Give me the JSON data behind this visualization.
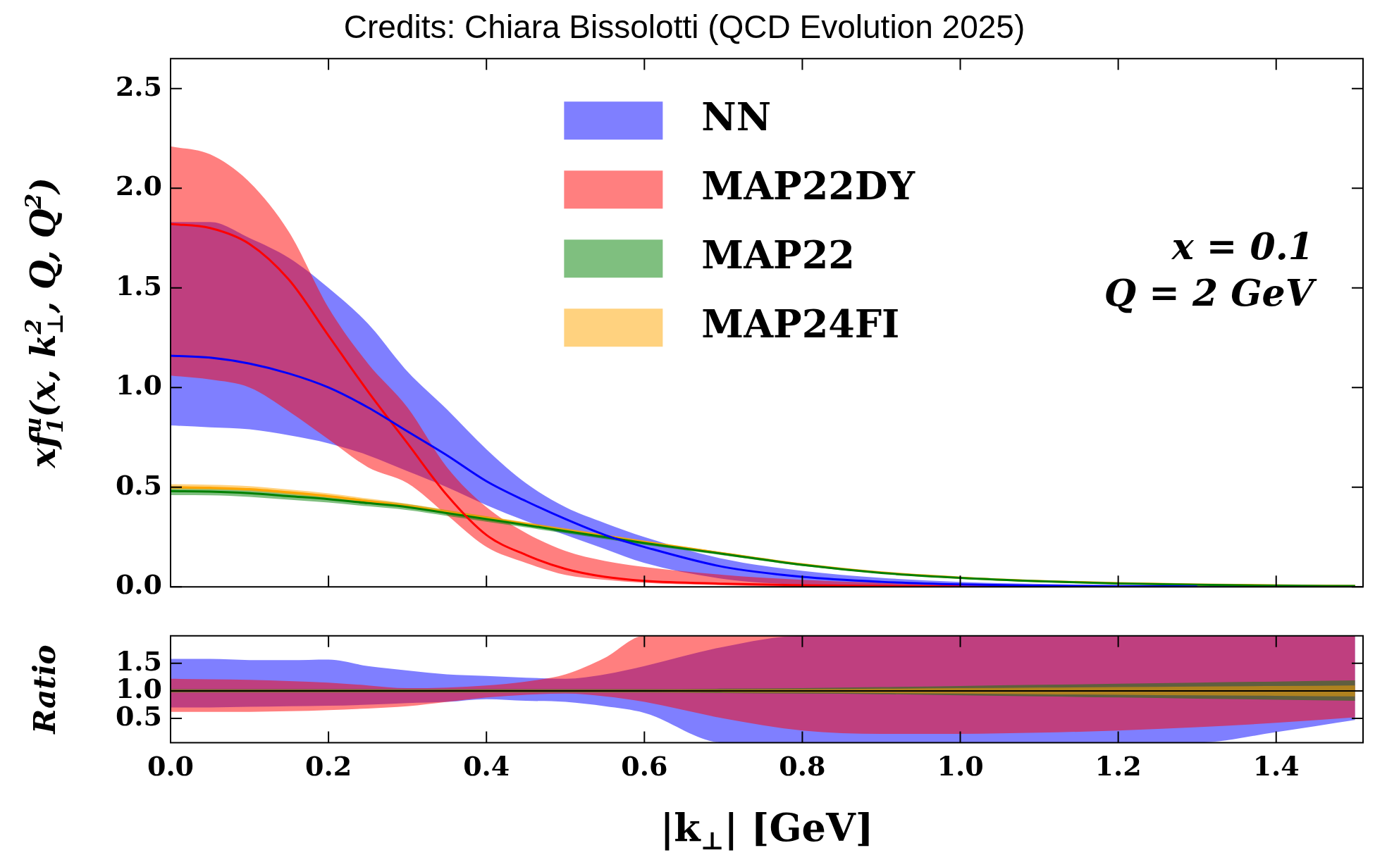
{
  "chart_data": [
    {
      "type": "line",
      "title": "Credits: Chiara Bissolotti (QCD Evolution 2025)",
      "ylabel": "xf$_{1}$$^{u}$(x, k$_{⊥}$$^{2}$, Q, Q$^{2}$)",
      "annotations": [
        "x = 0.1",
        "Q = 2 GeV"
      ],
      "x": [
        0,
        0.05,
        0.1,
        0.15,
        0.2,
        0.25,
        0.3,
        0.35,
        0.4,
        0.45,
        0.5,
        0.55,
        0.6,
        0.7,
        0.8,
        0.9,
        1.0,
        1.1,
        1.2,
        1.3,
        1.4,
        1.5
      ],
      "xlim": [
        0,
        1.51
      ],
      "xticks": [
        {
          "value": 0,
          "label": null
        },
        {
          "value": 0.2,
          "label": null
        },
        {
          "value": 0.4,
          "label": null
        },
        {
          "value": 0.6,
          "label": null
        },
        {
          "value": 0.8,
          "label": null
        },
        {
          "value": 1,
          "label": null
        },
        {
          "value": 1.2,
          "label": null
        },
        {
          "value": 1.4,
          "label": null
        }
      ],
      "ylim": [
        0,
        2.65
      ],
      "yticks": [
        {
          "value": 0,
          "label": "0.0"
        },
        {
          "value": 0.5,
          "label": "0.5"
        },
        {
          "value": 1,
          "label": "1.0"
        },
        {
          "value": 1.5,
          "label": "1.5"
        },
        {
          "value": 2,
          "label": "2.0"
        },
        {
          "value": 2.5,
          "label": "2.5"
        }
      ],
      "tick_labels": "y",
      "legend": "top",
      "series": [
        {
          "name": "NN",
          "color": "#0000ff",
          "values": [
            1.16,
            1.15,
            1.12,
            1.07,
            1.0,
            0.9,
            0.78,
            0.66,
            0.53,
            0.43,
            0.34,
            0.26,
            0.2,
            0.1,
            0.05,
            0.025,
            0.012,
            0.006,
            0.003,
            0.002,
            null,
            null
          ],
          "lower": [
            0.81,
            0.8,
            0.79,
            0.76,
            0.72,
            0.66,
            0.58,
            0.5,
            0.41,
            0.33,
            0.26,
            0.19,
            0.12,
            0.04,
            0.01,
            0,
            0,
            0,
            0,
            0,
            0,
            0
          ],
          "upper": [
            1.83,
            1.83,
            1.75,
            1.65,
            1.5,
            1.32,
            1.08,
            0.89,
            0.69,
            0.52,
            0.4,
            0.32,
            0.25,
            0.14,
            0.08,
            0.045,
            0.025,
            0.015,
            0.008,
            0.005,
            0.003,
            0.002
          ]
        },
        {
          "name": "MAP22DY",
          "color": "#ff0000",
          "values": [
            1.82,
            1.8,
            1.72,
            1.54,
            1.26,
            0.98,
            0.72,
            0.46,
            0.26,
            0.16,
            0.09,
            0.05,
            0.03,
            0.016,
            0.008,
            0.004,
            0.002,
            null,
            null,
            null,
            null,
            null
          ],
          "lower": [
            1.06,
            1.04,
            1.0,
            0.88,
            0.74,
            0.6,
            0.52,
            0.36,
            0.2,
            0.12,
            0.06,
            0.035,
            0.02,
            0.008,
            0,
            0,
            0,
            0,
            0,
            0,
            0,
            0
          ],
          "upper": [
            2.21,
            2.17,
            2.03,
            1.78,
            1.4,
            1.12,
            0.9,
            0.6,
            0.4,
            0.27,
            0.18,
            0.13,
            0.1,
            0.06,
            0.035,
            0.02,
            0.01,
            0.006,
            0.003,
            0.002,
            0.001,
            0.001
          ]
        },
        {
          "name": "MAP22",
          "color": "#008000",
          "values": [
            0.48,
            0.478,
            0.47,
            0.455,
            0.44,
            0.42,
            0.4,
            0.37,
            0.34,
            0.31,
            0.28,
            0.25,
            0.22,
            0.165,
            0.11,
            0.07,
            0.045,
            0.028,
            0.017,
            0.01,
            0.006,
            0.004
          ],
          "lower": [
            0.46,
            0.459,
            0.451,
            0.437,
            0.423,
            0.404,
            0.385,
            0.356,
            0.327,
            0.298,
            0.269,
            0.24,
            0.211,
            0.158,
            0.105,
            0.067,
            0.043,
            0.027,
            0.016,
            0.009,
            0.005,
            0.003
          ],
          "upper": [
            0.5,
            0.497,
            0.489,
            0.473,
            0.457,
            0.436,
            0.415,
            0.384,
            0.353,
            0.322,
            0.291,
            0.26,
            0.229,
            0.172,
            0.115,
            0.073,
            0.047,
            0.029,
            0.018,
            0.011,
            0.007,
            0.005
          ]
        },
        {
          "name": "MAP24FI",
          "color": "#ffa500",
          "values": [
            0.5,
            0.497,
            0.49,
            0.474,
            0.455,
            0.43,
            0.405,
            0.375,
            0.345,
            0.315,
            0.285,
            0.255,
            0.225,
            0.168,
            0.113,
            0.072,
            0.046,
            0.029,
            0.018,
            0.011,
            null,
            0.004
          ],
          "lower": [
            0.49,
            0.487,
            0.48,
            0.464,
            0.446,
            0.422,
            0.397,
            0.368,
            0.338,
            0.309,
            0.279,
            0.25,
            0.22,
            0.164,
            0.11,
            0.07,
            0.045,
            0.028,
            0.017,
            0.01,
            0.006,
            0.003
          ],
          "upper": [
            0.515,
            0.512,
            0.505,
            0.488,
            0.469,
            0.443,
            0.417,
            0.386,
            0.355,
            0.324,
            0.294,
            0.263,
            0.232,
            0.173,
            0.117,
            0.075,
            0.048,
            0.031,
            0.02,
            0.012,
            0.008,
            0.005
          ]
        }
      ]
    },
    {
      "type": "line",
      "xlabel": "|k$_{⊥}$| [GeV]",
      "ylabel": "Ratio",
      "x": [
        0,
        0.05,
        0.1,
        0.15,
        0.2,
        0.25,
        0.3,
        0.35,
        0.4,
        0.45,
        0.5,
        0.55,
        0.6,
        0.7,
        0.8,
        0.9,
        1.0,
        1.1,
        1.2,
        1.3,
        1.4,
        1.5
      ],
      "xlim": [
        0,
        1.51
      ],
      "xticks": [
        {
          "value": 0,
          "label": "0.0"
        },
        {
          "value": 0.2,
          "label": "0.2"
        },
        {
          "value": 0.4,
          "label": "0.4"
        },
        {
          "value": 0.6,
          "label": "0.6"
        },
        {
          "value": 0.8,
          "label": "0.8"
        },
        {
          "value": 1,
          "label": "1.0"
        },
        {
          "value": 1.2,
          "label": "1.2"
        },
        {
          "value": 1.4,
          "label": "1.4"
        }
      ],
      "ylim": [
        0.06,
        2.0
      ],
      "yticks": [
        {
          "value": 0.5,
          "label": "0.5"
        },
        {
          "value": 1,
          "label": "1.0"
        },
        {
          "value": 1.5,
          "label": "1.5"
        }
      ],
      "ref_lines": [
        {
          "axis": "y",
          "value": 1,
          "color": "#000000"
        }
      ],
      "series": [
        {
          "color": "#0000ff",
          "values": [
            null,
            null,
            null,
            null,
            null,
            null,
            null,
            null,
            null,
            null,
            null,
            null,
            null,
            null,
            null,
            null,
            null,
            null,
            null,
            null,
            null,
            null
          ],
          "lower": [
            0.7,
            0.7,
            0.71,
            0.72,
            0.73,
            0.75,
            0.78,
            0.8,
            0.85,
            0.82,
            0.8,
            0.72,
            0.6,
            0.06,
            0.06,
            0.06,
            0.06,
            0.06,
            0.06,
            0.06,
            0.25,
            0.47
          ],
          "upper": [
            1.58,
            1.58,
            1.56,
            1.56,
            1.57,
            1.45,
            1.37,
            1.3,
            1.27,
            1.24,
            1.22,
            1.3,
            1.45,
            1.8,
            2.0,
            2.0,
            2.0,
            2.0,
            2.0,
            2.0,
            2.0,
            2.0
          ]
        },
        {
          "color": "#ff0000",
          "values": [
            null,
            null,
            null,
            null,
            null,
            null,
            null,
            null,
            null,
            null,
            null,
            null,
            null,
            null,
            null,
            null,
            null,
            null,
            null,
            null,
            null,
            null
          ],
          "lower": [
            0.62,
            0.62,
            0.62,
            0.63,
            0.65,
            0.68,
            0.72,
            0.8,
            0.88,
            0.93,
            0.95,
            0.9,
            0.8,
            0.5,
            0.28,
            0.22,
            0.22,
            0.24,
            0.28,
            0.34,
            0.42,
            0.52
          ],
          "upper": [
            1.22,
            1.21,
            1.2,
            1.18,
            1.15,
            1.1,
            1.05,
            1.06,
            1.1,
            1.17,
            1.3,
            1.6,
            2.0,
            2.0,
            2.0,
            2.0,
            2.0,
            2.0,
            2.0,
            2.0,
            2.0,
            2.0
          ]
        },
        {
          "color": "#008000",
          "values": [
            null,
            null,
            null,
            null,
            null,
            null,
            null,
            null,
            null,
            null,
            null,
            null,
            null,
            null,
            null,
            null,
            null,
            null,
            null,
            null,
            null,
            null
          ],
          "lower": [
            0.97,
            0.97,
            0.97,
            0.97,
            0.97,
            0.97,
            0.97,
            0.97,
            0.97,
            0.97,
            0.97,
            0.97,
            0.97,
            0.96,
            0.95,
            0.94,
            0.92,
            0.9,
            0.88,
            0.86,
            0.84,
            0.82
          ],
          "upper": [
            1.03,
            1.03,
            1.03,
            1.03,
            1.03,
            1.03,
            1.03,
            1.03,
            1.03,
            1.03,
            1.03,
            1.03,
            1.03,
            1.04,
            1.05,
            1.07,
            1.09,
            1.11,
            1.13,
            1.15,
            1.17,
            1.19
          ]
        },
        {
          "color": "#ffa500",
          "values": [
            null,
            null,
            null,
            null,
            null,
            null,
            null,
            null,
            null,
            null,
            null,
            null,
            null,
            null,
            null,
            null,
            null,
            null,
            null,
            null,
            null,
            null
          ],
          "lower": [
            0.98,
            0.98,
            0.98,
            0.98,
            0.98,
            0.98,
            0.98,
            0.98,
            0.98,
            0.98,
            0.98,
            0.98,
            0.98,
            0.975,
            0.97,
            0.96,
            0.95,
            0.94,
            0.93,
            0.92,
            0.91,
            0.9
          ],
          "upper": [
            1.02,
            1.02,
            1.02,
            1.02,
            1.02,
            1.02,
            1.02,
            1.02,
            1.02,
            1.02,
            1.02,
            1.02,
            1.02,
            1.025,
            1.03,
            1.04,
            1.05,
            1.06,
            1.07,
            1.08,
            1.09,
            1.1
          ]
        }
      ]
    }
  ]
}
